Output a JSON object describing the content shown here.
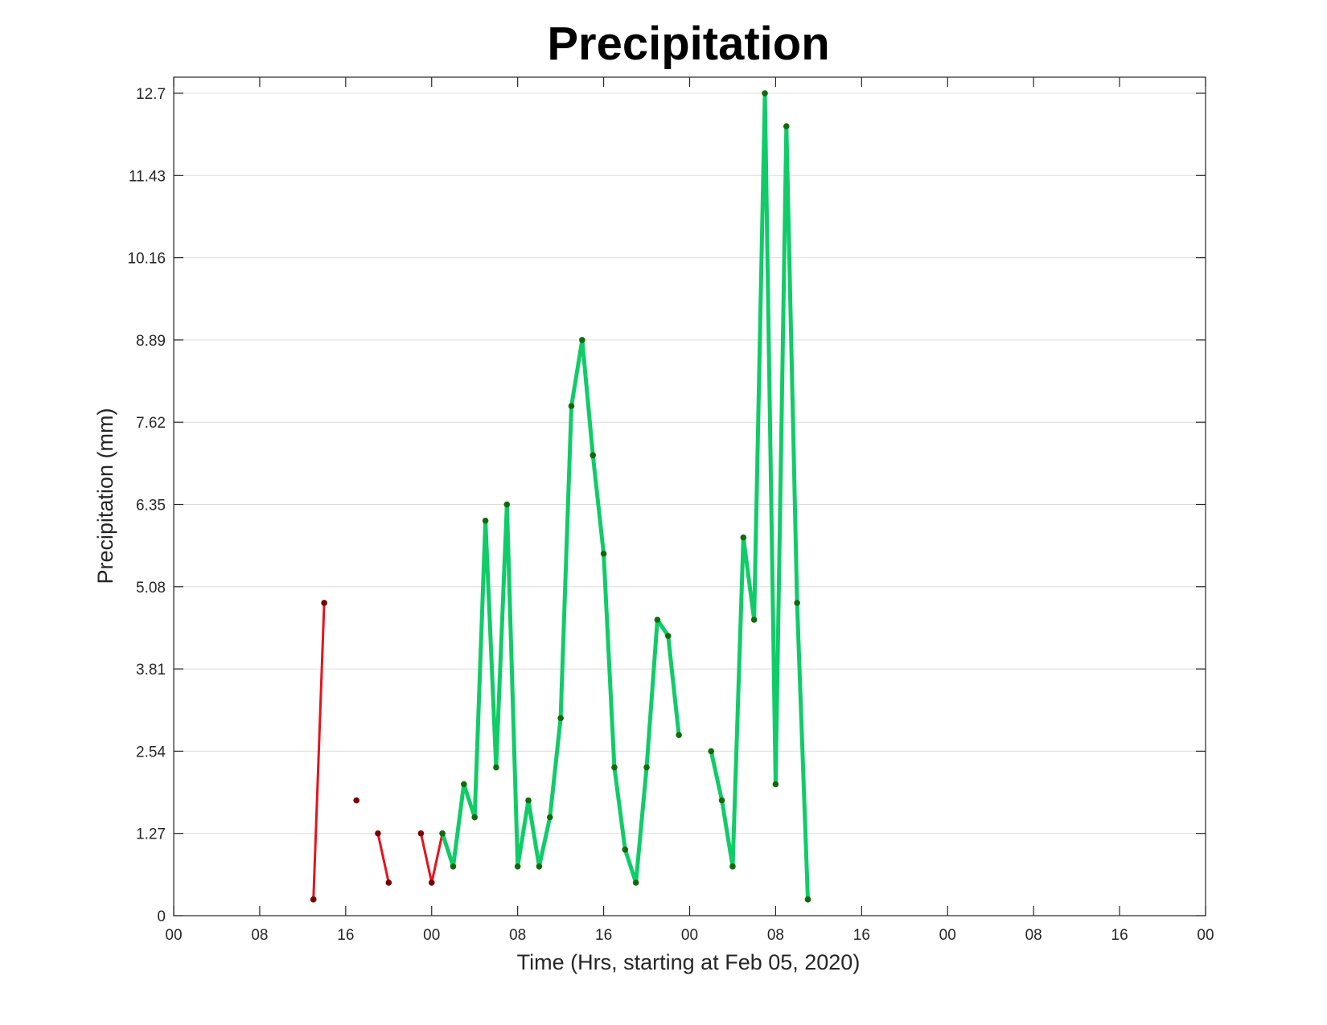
{
  "chart_data": {
    "type": "line",
    "title": "Precipitation",
    "xlabel": "Time (Hrs, starting at Feb 05, 2020)",
    "ylabel": "Precipitation (mm)",
    "xlim": [
      0,
      96
    ],
    "ylim": [
      0,
      12.7
    ],
    "x_ticks": [
      0,
      8,
      16,
      24,
      32,
      40,
      48,
      56,
      64,
      72,
      80,
      88,
      96
    ],
    "x_tick_labels": [
      "00",
      "08",
      "16",
      "00",
      "08",
      "16",
      "00",
      "08",
      "16",
      "00",
      "08",
      "16",
      "00"
    ],
    "y_ticks": [
      0,
      1.27,
      2.54,
      3.81,
      5.08,
      6.35,
      7.62,
      8.89,
      10.16,
      11.43,
      12.7
    ],
    "y_tick_labels": [
      "0",
      "1.27",
      "2.54",
      "3.81",
      "5.08",
      "6.35",
      "7.62",
      "8.89",
      "10.16",
      "11.43",
      "12.7"
    ],
    "grid": true,
    "series": [
      {
        "color": "#e8121a",
        "marker_color": "#7a0000",
        "line_width": 3,
        "segments": [
          [
            [
              13,
              0.25
            ],
            [
              14,
              4.83
            ]
          ],
          [
            [
              17,
              1.78
            ]
          ],
          [
            [
              19,
              1.27
            ],
            [
              20,
              0.51
            ]
          ],
          [
            [
              23,
              1.27
            ],
            [
              24,
              0.51
            ],
            [
              25,
              1.27
            ]
          ]
        ]
      },
      {
        "color": "#10cc68",
        "marker_color": "#116b0a",
        "line_width": 5,
        "segments": [
          [
            [
              25,
              1.27
            ],
            [
              26,
              0.76
            ],
            [
              27,
              2.03
            ],
            [
              28,
              1.52
            ],
            [
              29,
              6.1
            ],
            [
              30,
              2.29
            ],
            [
              31,
              6.35
            ],
            [
              32,
              0.76
            ],
            [
              33,
              1.78
            ],
            [
              34,
              0.76
            ],
            [
              35,
              1.52
            ],
            [
              36,
              3.05
            ],
            [
              37,
              7.87
            ],
            [
              38,
              8.89
            ],
            [
              39,
              7.11
            ],
            [
              40,
              5.59
            ],
            [
              41,
              2.29
            ],
            [
              42,
              1.02
            ],
            [
              43,
              0.51
            ],
            [
              44,
              2.29
            ],
            [
              45,
              4.57
            ],
            [
              46,
              4.32
            ],
            [
              47,
              2.79
            ]
          ],
          [
            [
              50,
              2.54
            ],
            [
              51,
              1.78
            ],
            [
              52,
              0.76
            ],
            [
              53,
              5.84
            ],
            [
              54,
              4.57
            ],
            [
              55,
              12.7
            ],
            [
              56,
              2.03
            ],
            [
              57,
              12.19
            ],
            [
              58,
              4.83
            ],
            [
              59,
              0.25
            ]
          ]
        ]
      }
    ]
  }
}
